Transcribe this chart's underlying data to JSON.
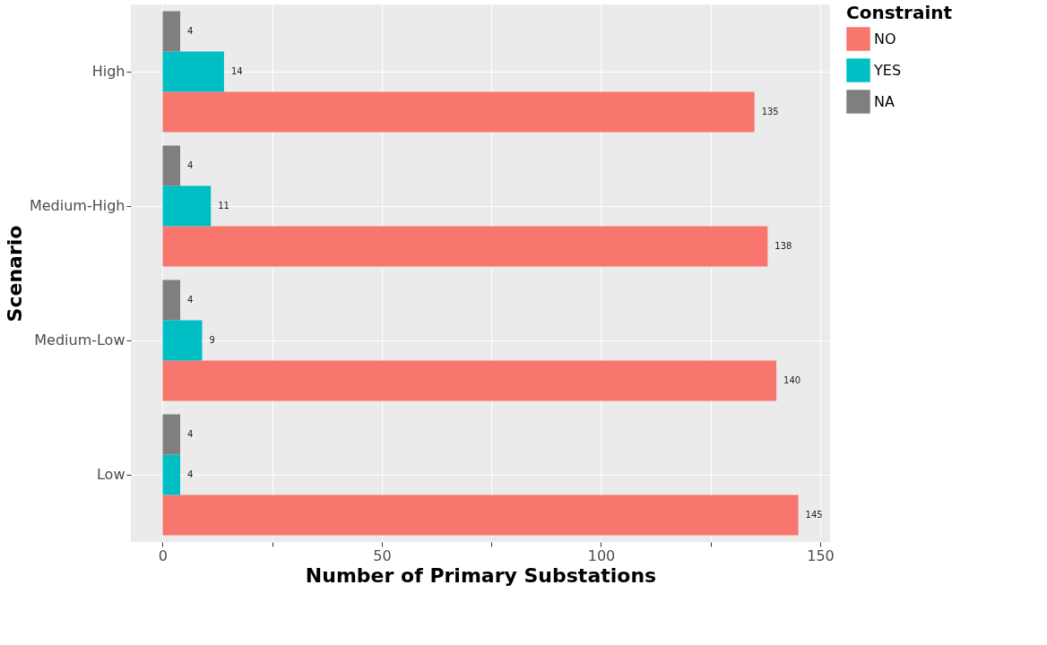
{
  "chart_data": {
    "type": "bar",
    "orientation": "horizontal",
    "xlabel": "Number of Primary Substations",
    "ylabel": "Scenario",
    "legend_title": "Constraint",
    "categories": [
      "High",
      "Medium-High",
      "Medium-Low",
      "Low"
    ],
    "series": [
      {
        "name": "NO",
        "color": "#f8766d",
        "values": [
          135,
          138,
          140,
          145
        ]
      },
      {
        "name": "YES",
        "color": "#00bfc4",
        "values": [
          14,
          11,
          9,
          4
        ]
      },
      {
        "name": "NA",
        "color": "#7f7f7f",
        "values": [
          4,
          4,
          4,
          4
        ]
      }
    ],
    "xlim": [
      -7.25,
      152.25
    ],
    "xticks": [
      0,
      {
        "value": 25,
        "label": null
      },
      50,
      {
        "value": 75,
        "label": null
      },
      100,
      {
        "value": 125,
        "label": null
      },
      150
    ],
    "data_labels": true,
    "grid": true,
    "legend": "right"
  }
}
